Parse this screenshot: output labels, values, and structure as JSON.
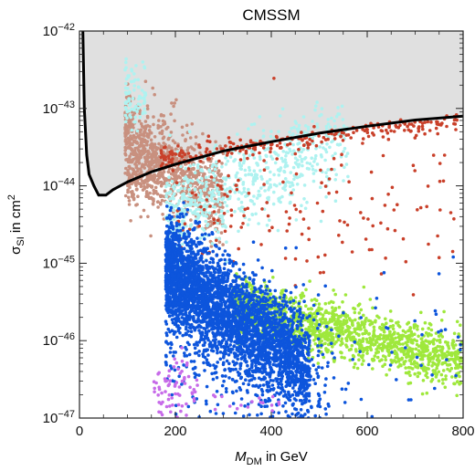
{
  "chart_data": {
    "type": "scatter",
    "title": "CMSSM",
    "xlabel": {
      "main": "M",
      "sub": "DM",
      "suffix": " in GeV"
    },
    "ylabel": {
      "main": "σ",
      "sub": "SI",
      "mid": " in cm",
      "sup": "2"
    },
    "xlim": [
      0,
      800
    ],
    "ylim_log10": [
      -47,
      -42
    ],
    "y_scale": "log",
    "grid": false,
    "x_ticks": [
      "0",
      "200",
      "400",
      "600",
      "800"
    ],
    "x_tick_values": [
      0,
      200,
      400,
      600,
      800
    ],
    "y_ticks": [
      {
        "base": "10",
        "exp": "−42",
        "value": -42
      },
      {
        "base": "10",
        "exp": "−43",
        "value": -43
      },
      {
        "base": "10",
        "exp": "−44",
        "value": -44
      },
      {
        "base": "10",
        "exp": "−45",
        "value": -45
      },
      {
        "base": "10",
        "exp": "−46",
        "value": -46
      },
      {
        "base": "10",
        "exp": "−47",
        "value": -47
      }
    ],
    "exclusion_limit": {
      "x": [
        7,
        10,
        15,
        20,
        30,
        40,
        55,
        70,
        100,
        150,
        200,
        300,
        400,
        500,
        600,
        700,
        800
      ],
      "log10_y": [
        -42,
        -43.0,
        -43.6,
        -43.85,
        -44.0,
        -44.12,
        -44.12,
        -44.05,
        -43.95,
        -43.82,
        -43.72,
        -43.55,
        -43.43,
        -43.32,
        -43.23,
        -43.15,
        -43.1
      ],
      "fill_color": "#e0e0e0",
      "line_color": "#000000"
    },
    "series": [
      {
        "color": "#c8907f",
        "clusters": [
          {
            "x_range": [
              95,
              300
            ],
            "log10_y_center": -43.35,
            "log10_y_spread": 0.28,
            "slope": -0.004,
            "count": 900
          },
          {
            "x_range": [
              100,
              180
            ],
            "log10_y_center": -44.0,
            "log10_y_spread": 0.15,
            "slope": 0.0,
            "count": 120
          }
        ]
      },
      {
        "color": "#aef2f0",
        "clusters": [
          {
            "x_range": [
              95,
              140
            ],
            "log10_y_center": -42.85,
            "log10_y_spread": 0.2,
            "slope": 0.0,
            "count": 80
          },
          {
            "x_range": [
              180,
              560
            ],
            "log10_y_center": -44.4,
            "log10_y_spread": 0.3,
            "slope": 0.0028,
            "count": 700
          }
        ]
      },
      {
        "color": "#c9402a",
        "clusters": [
          {
            "x_range": [
              170,
              790
            ],
            "log10_y_center": -43.65,
            "log10_y_spread": 0.06,
            "slope": 0.0008,
            "count": 260
          },
          {
            "x_range": [
              200,
              790
            ],
            "log10_y_center": -44.3,
            "log10_y_spread": 0.45,
            "slope": 0.0,
            "count": 150
          }
        ]
      },
      {
        "color": "#9fe83c",
        "clusters": [
          {
            "x_range": [
              320,
              800
            ],
            "log10_y_center": -45.55,
            "log10_y_spread": 0.18,
            "slope": -0.0015,
            "count": 1500
          }
        ]
      },
      {
        "color": "#0d55dc",
        "clusters": [
          {
            "x_range": [
              180,
              480
            ],
            "log10_y_center": -45.05,
            "log10_y_spread": 0.32,
            "slope": -0.0045,
            "count": 3200
          },
          {
            "x_range": [
              180,
              520
            ],
            "log10_y_center": -45.6,
            "log10_y_spread": 0.55,
            "slope": -0.003,
            "count": 500
          },
          {
            "x_range": [
              200,
              800
            ],
            "log10_y_center": -46.3,
            "log10_y_spread": 0.5,
            "slope": 0.0,
            "count": 120
          }
        ]
      },
      {
        "color": "#c76be9",
        "clusters": [
          {
            "x_range": [
              155,
              250
            ],
            "log10_y_center": -46.65,
            "log10_y_spread": 0.22,
            "slope": 0.0,
            "count": 70
          },
          {
            "x_range": [
              270,
              420
            ],
            "log10_y_center": -46.85,
            "log10_y_spread": 0.1,
            "slope": 0.0,
            "count": 18
          }
        ]
      }
    ]
  }
}
